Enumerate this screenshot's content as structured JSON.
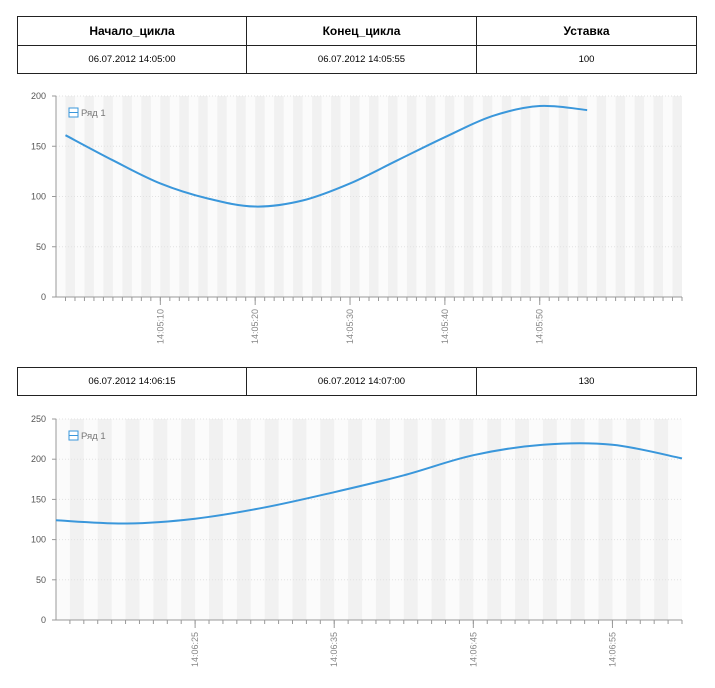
{
  "table": {
    "headers": [
      "Начало_цикла",
      "Конец_цикла",
      "Уставка"
    ],
    "cycles": [
      {
        "start": "06.07.2012 14:05:00",
        "end": "06.07.2012 14:05:55",
        "setpoint": "100"
      },
      {
        "start": "06.07.2012 14:06:15",
        "end": "06.07.2012 14:07:00",
        "setpoint": "130"
      }
    ]
  },
  "colors": {
    "series": "#3a97db",
    "axis": "#999999",
    "grid": "#e2e2e2"
  },
  "icons": {
    "legend": "legend-series-icon"
  },
  "chart_data": [
    {
      "type": "line",
      "title": "",
      "xlabel": "",
      "ylabel": "",
      "ylim": [
        0,
        200
      ],
      "yticks": [
        "0",
        "50",
        "100",
        "150",
        "200"
      ],
      "xlim": [
        "14:04:59",
        "14:06:05"
      ],
      "xticks": [
        "14:05:10",
        "14:05:20",
        "14:05:30",
        "14:05:40",
        "14:05:50"
      ],
      "grid": true,
      "legend_position": "top-left",
      "series": [
        {
          "name": "Ряд 1",
          "x": [
            "14:05:00",
            "14:05:05",
            "14:05:10",
            "14:05:15",
            "14:05:20",
            "14:05:25",
            "14:05:30",
            "14:05:35",
            "14:05:40",
            "14:05:45",
            "14:05:50",
            "14:05:55"
          ],
          "y": [
            161,
            136,
            113,
            98,
            90,
            96,
            113,
            136,
            159,
            180,
            190,
            186
          ]
        }
      ]
    },
    {
      "type": "line",
      "title": "",
      "xlabel": "",
      "ylabel": "",
      "ylim": [
        0,
        250
      ],
      "yticks": [
        "0",
        "50",
        "100",
        "150",
        "200",
        "250"
      ],
      "xlim": [
        "14:06:15",
        "14:07:00"
      ],
      "xticks": [
        "14:06:25",
        "14:06:35",
        "14:06:45",
        "14:06:55"
      ],
      "grid": true,
      "legend_position": "top-left",
      "series": [
        {
          "name": "Ряд 1",
          "x": [
            "14:06:15",
            "14:06:20",
            "14:06:25",
            "14:06:30",
            "14:06:35",
            "14:06:40",
            "14:06:45",
            "14:06:50",
            "14:06:55",
            "14:07:00"
          ],
          "y": [
            124,
            120,
            126,
            140,
            159,
            180,
            205,
            218,
            218,
            201
          ]
        }
      ]
    }
  ]
}
